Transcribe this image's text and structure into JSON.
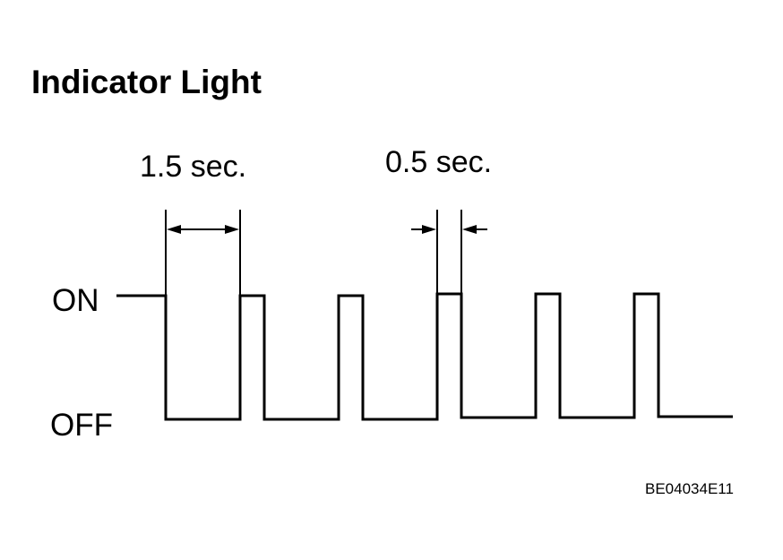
{
  "title": "Indicator Light",
  "labels": {
    "long_interval": "1.5 sec.",
    "short_interval": "0.5 sec.",
    "on": "ON",
    "off": "OFF"
  },
  "figure_id": "BE04034E11"
}
